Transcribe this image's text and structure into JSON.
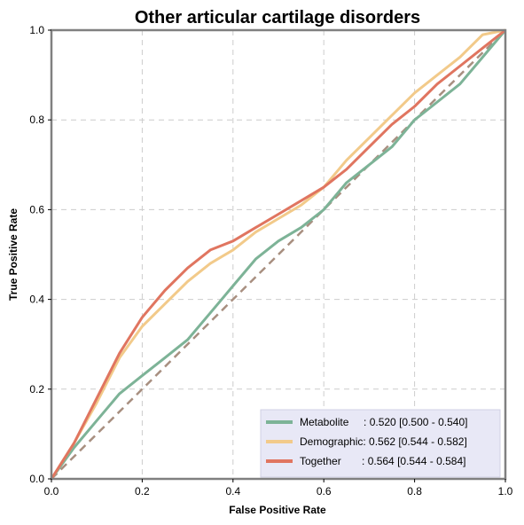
{
  "chart_data": {
    "type": "line",
    "title": "Other articular cartilage disorders",
    "xlabel": "False Positive Rate",
    "ylabel": "True Positive Rate",
    "xlim": [
      0,
      1
    ],
    "ylim": [
      0,
      1
    ],
    "x_ticks": [
      "0.0",
      "0.2",
      "0.4",
      "0.6",
      "0.8",
      "1.0"
    ],
    "y_ticks": [
      "0.0",
      "0.2",
      "0.4",
      "0.6",
      "0.8",
      "1.0"
    ],
    "grid": true,
    "legend_position": "bottom-right",
    "diagonal_color": "#a88f80",
    "series": [
      {
        "name": "Metabolite",
        "legend_label": "Metabolite     : 0.520 [0.500 - 0.540]",
        "color": "#7db397",
        "x": [
          0,
          0.05,
          0.1,
          0.15,
          0.2,
          0.25,
          0.3,
          0.35,
          0.4,
          0.45,
          0.5,
          0.55,
          0.6,
          0.65,
          0.7,
          0.75,
          0.8,
          0.85,
          0.9,
          0.95,
          1.0
        ],
        "y": [
          0,
          0.07,
          0.13,
          0.19,
          0.23,
          0.27,
          0.31,
          0.37,
          0.43,
          0.49,
          0.53,
          0.56,
          0.6,
          0.66,
          0.7,
          0.74,
          0.8,
          0.84,
          0.88,
          0.94,
          1.0
        ]
      },
      {
        "name": "Demographic",
        "legend_label": "Demographic: 0.562 [0.544 - 0.582]",
        "color": "#f2ca8a",
        "x": [
          0,
          0.05,
          0.1,
          0.15,
          0.2,
          0.25,
          0.3,
          0.35,
          0.4,
          0.45,
          0.5,
          0.55,
          0.6,
          0.65,
          0.7,
          0.75,
          0.8,
          0.85,
          0.9,
          0.95,
          1.0
        ],
        "y": [
          0,
          0.08,
          0.17,
          0.27,
          0.34,
          0.39,
          0.44,
          0.48,
          0.51,
          0.55,
          0.58,
          0.61,
          0.65,
          0.71,
          0.76,
          0.81,
          0.86,
          0.9,
          0.94,
          0.99,
          1.0
        ]
      },
      {
        "name": "Together",
        "legend_label": "Together       : 0.564 [0.544 - 0.584]",
        "color": "#e07560",
        "x": [
          0,
          0.05,
          0.1,
          0.15,
          0.2,
          0.25,
          0.3,
          0.35,
          0.4,
          0.45,
          0.5,
          0.55,
          0.6,
          0.65,
          0.7,
          0.75,
          0.8,
          0.85,
          0.9,
          0.95,
          1.0
        ],
        "y": [
          0,
          0.08,
          0.18,
          0.28,
          0.36,
          0.42,
          0.47,
          0.51,
          0.53,
          0.56,
          0.59,
          0.62,
          0.65,
          0.69,
          0.74,
          0.79,
          0.83,
          0.88,
          0.92,
          0.96,
          1.0
        ]
      }
    ]
  }
}
